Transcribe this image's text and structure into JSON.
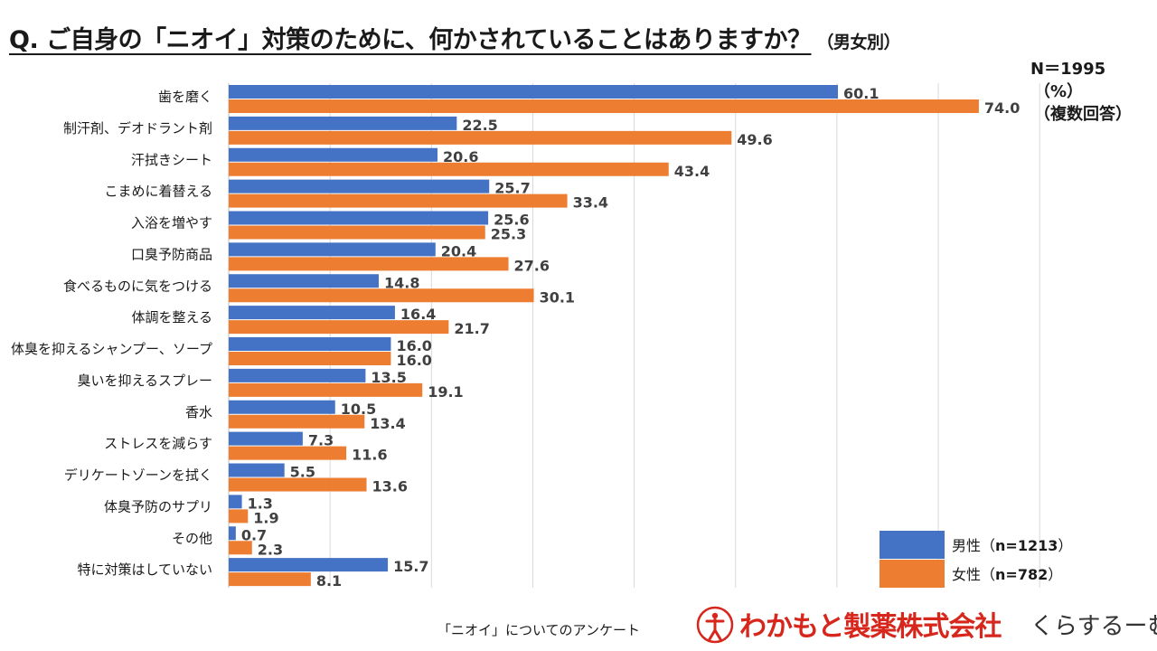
{
  "title": {
    "main": "Q. ご自身の「ニオイ」対策のために、何かされていることはありますか？",
    "sub": "（男女別）"
  },
  "notes": {
    "n": "N＝1995",
    "unit": "（%）",
    "multi": "（複数回答）"
  },
  "legend": {
    "male_label": "男性（",
    "male_n": "n=1213",
    "male_close": "）",
    "female_label": "女性（",
    "female_n": "n=782",
    "female_close": "）"
  },
  "footer": {
    "survey": "「ニオイ」についてのアンケート",
    "brand": "わかもと製薬株式会社",
    "brand2": "くらするーむ"
  },
  "colors": {
    "male": "#4472C4",
    "female": "#ED7D31",
    "grid": "#D9D9D9"
  },
  "chart_data": {
    "type": "bar",
    "orientation": "horizontal",
    "title": "Q. ご自身の「ニオイ」対策のために、何かされていることはありますか？（男女別）",
    "xlim": [
      0,
      80
    ],
    "grid": true,
    "legend_position": "bottom-right",
    "categories": [
      "歯を磨く",
      "制汗剤、デオドラント剤",
      "汗拭きシート",
      "こまめに着替える",
      "入浴を増やす",
      "口臭予防商品",
      "食べるものに気をつける",
      "体調を整える",
      "体臭を抑えるシャンプー、ソープ",
      "臭いを抑えるスプレー",
      "香水",
      "ストレスを減らす",
      "デリケートゾーンを拭く",
      "体臭予防のサプリ",
      "その他",
      "特に対策はしていない"
    ],
    "series": [
      {
        "name": "男性（n=1213）",
        "values": [
          60.1,
          22.5,
          20.6,
          25.7,
          25.6,
          20.4,
          14.8,
          16.4,
          16.0,
          13.5,
          10.5,
          7.3,
          5.5,
          1.3,
          0.7,
          15.7
        ]
      },
      {
        "name": "女性（n=782）",
        "values": [
          74.0,
          49.6,
          43.4,
          33.4,
          25.3,
          27.6,
          30.1,
          21.7,
          16.0,
          19.1,
          13.4,
          11.6,
          13.6,
          1.9,
          2.3,
          8.1
        ]
      }
    ]
  }
}
